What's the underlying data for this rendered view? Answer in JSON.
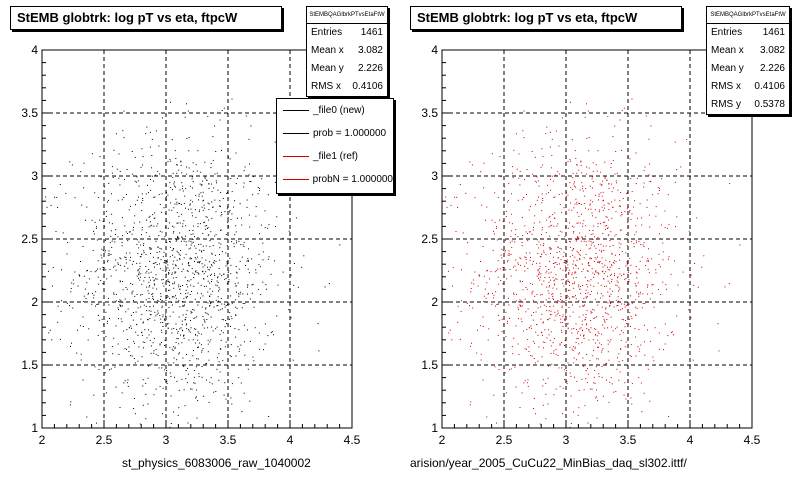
{
  "chart_data": [
    {
      "type": "scatter",
      "title": "StEMB globtrk: log pT vs eta, ftpcW",
      "stats_header": "StEMBQAGlbrkPTvsEtaFtW",
      "stats": [
        {
          "label": "Entries",
          "value": "1461"
        },
        {
          "label": "Mean x",
          "value": "3.082"
        },
        {
          "label": "Mean y",
          "value": "2.226"
        },
        {
          "label": "RMS x",
          "value": "0.4106"
        }
      ],
      "legend": [
        {
          "label": "_file0 (new)",
          "color": "#000000"
        },
        {
          "label": "prob = 1.000000",
          "color": "#000000"
        },
        {
          "label": "_file1 (ref)",
          "color": "#cc0000"
        },
        {
          "label": "probN = 1.000000",
          "color": "#cc0000"
        }
      ],
      "xlabel": "st_physics_6083006_raw_1040002",
      "ylabel": "",
      "xlim": [
        2,
        4.5
      ],
      "ylim": [
        1,
        4
      ],
      "xticks": [
        "2",
        "2.5",
        "3",
        "3.5",
        "4",
        "4.5"
      ],
      "yticks": [
        "1",
        "1.5",
        "2",
        "2.5",
        "3",
        "3.5",
        "4"
      ],
      "grid": true,
      "marker_color": "#000000",
      "entries": 1461,
      "mean_x": 3.082,
      "mean_y": 2.226,
      "rms_x": 0.4106,
      "rms_y": 0.5378
    },
    {
      "type": "scatter",
      "title": "StEMB globtrk: log pT vs eta, ftpcW",
      "stats_header": "StEMBQAGlbrkPTvsEtaFtW",
      "stats": [
        {
          "label": "Entries",
          "value": "1461"
        },
        {
          "label": "Mean x",
          "value": "3.082"
        },
        {
          "label": "Mean y",
          "value": "2.226"
        },
        {
          "label": "RMS x",
          "value": "0.4106"
        },
        {
          "label": "RMS y",
          "value": "0.5378"
        }
      ],
      "xlabel": "arision/year_2005_CuCu22_MinBias_daq_sl302.ittf/",
      "ylabel": "",
      "xlim": [
        2,
        4.5
      ],
      "ylim": [
        1,
        4
      ],
      "xticks": [
        "2",
        "2.5",
        "3",
        "3.5",
        "4",
        "4.5"
      ],
      "yticks": [
        "1",
        "1.5",
        "2",
        "2.5",
        "3",
        "3.5",
        "4"
      ],
      "grid": true,
      "marker_color": "#cc0000",
      "entries": 1461,
      "mean_x": 3.082,
      "mean_y": 2.226,
      "rms_x": 0.4106,
      "rms_y": 0.5378
    }
  ]
}
